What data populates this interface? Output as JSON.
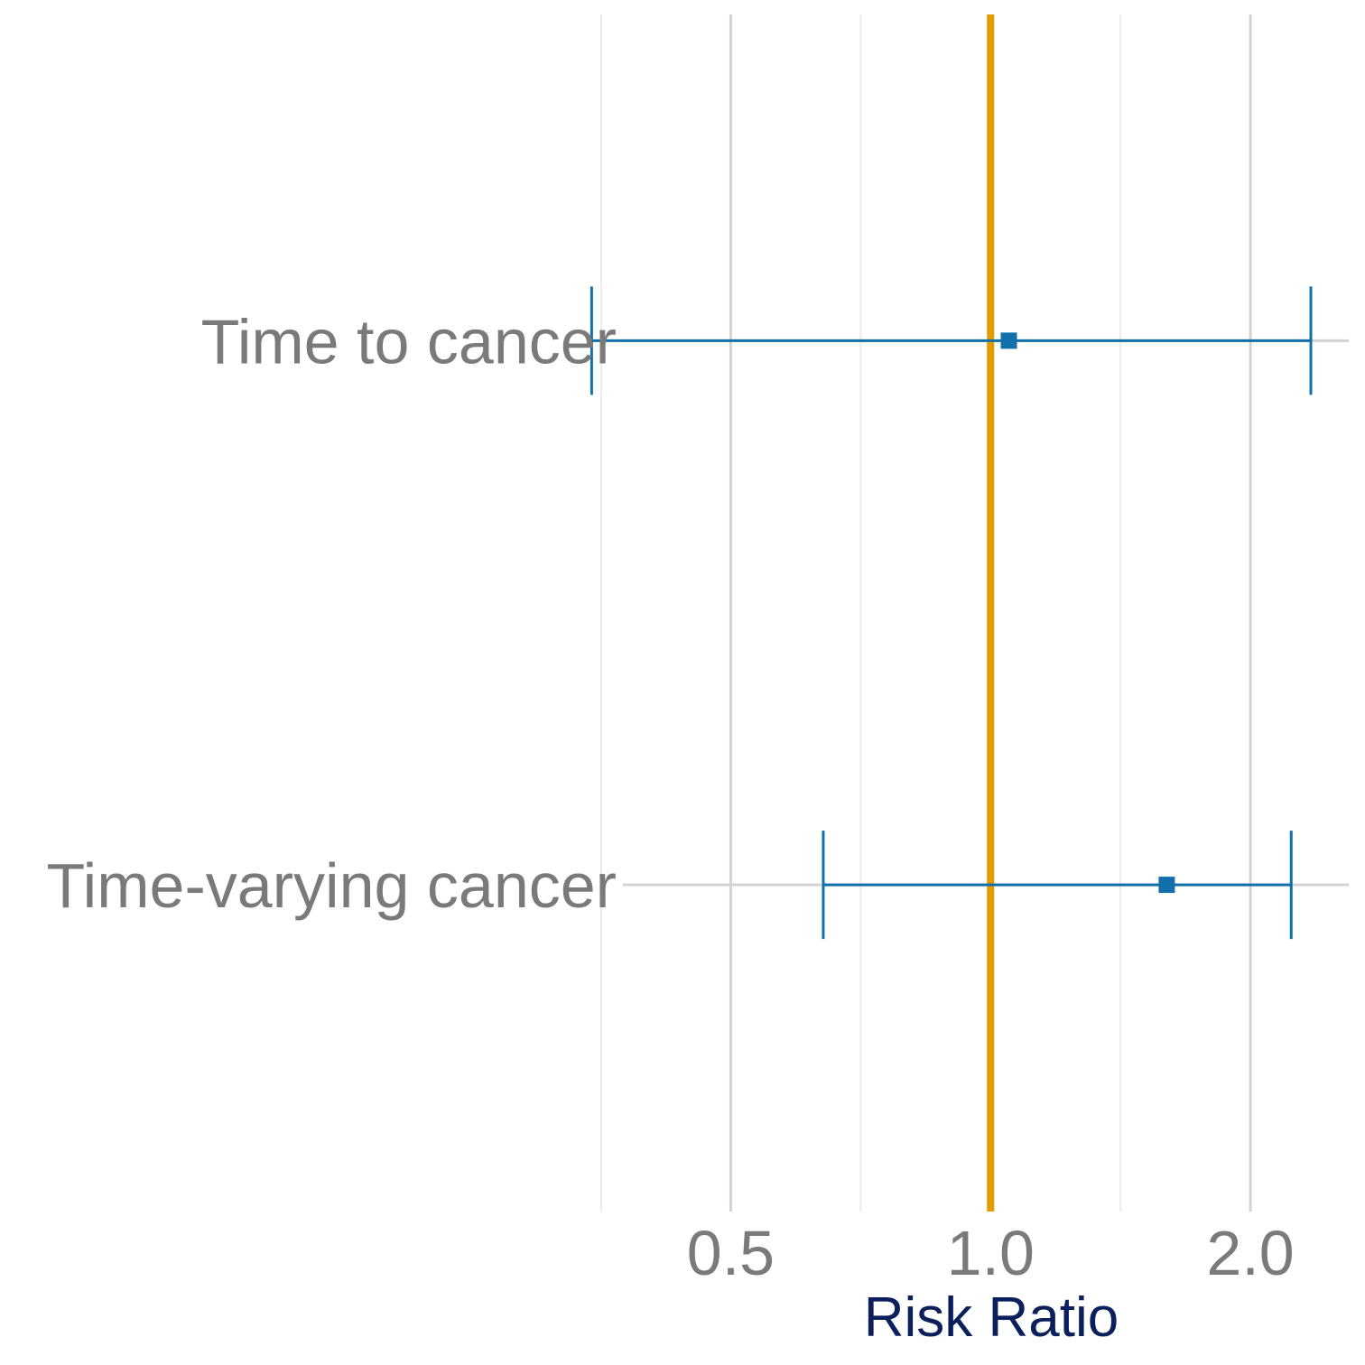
{
  "chart_data": {
    "type": "forest",
    "xlabel": "Risk Ratio",
    "x_scale": "log2",
    "xlim": [
      0.375,
      2.6
    ],
    "major_ticks": [
      0.5,
      1.0,
      2.0
    ],
    "major_tick_labels": [
      "0.5",
      "1.0",
      "2.0"
    ],
    "minor_gridlines": [
      0.354,
      0.707,
      1.414
    ],
    "reference_line": 1.0,
    "grid": true,
    "legend": "none",
    "rows": [
      {
        "label": "Time to cancer",
        "estimate": 1.05,
        "lower": 0.345,
        "upper": 2.35
      },
      {
        "label": "Time-varying cancer",
        "estimate": 1.6,
        "lower": 0.64,
        "upper": 2.23
      }
    ],
    "colors": {
      "point": "#1170aa",
      "reference": "#e39b00",
      "grid_major": "#d3d3d3",
      "grid_minor": "#ebebeb",
      "text": "#7a7a78",
      "axis_title": "#0b1f5c"
    }
  }
}
